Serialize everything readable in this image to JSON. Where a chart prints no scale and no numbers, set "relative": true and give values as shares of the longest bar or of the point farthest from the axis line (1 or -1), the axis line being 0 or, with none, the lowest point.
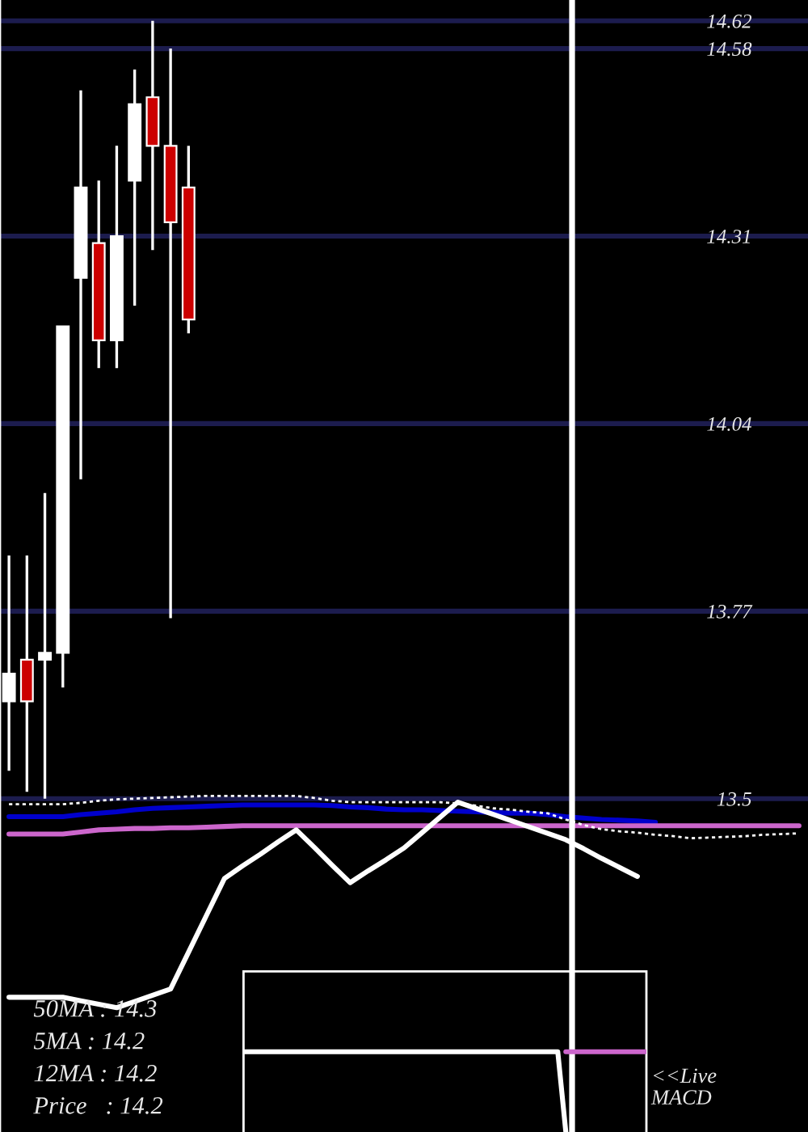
{
  "chart_data": [
    {
      "type": "candlestick",
      "categories": [
        null,
        null,
        null,
        null,
        null,
        null,
        null,
        null,
        null,
        null,
        null,
        null,
        null,
        null,
        null,
        null,
        null,
        null,
        null,
        null,
        null,
        null,
        null,
        null,
        null,
        null,
        null,
        null,
        null,
        null,
        null,
        null,
        null,
        null,
        null,
        null,
        null,
        null,
        null,
        null,
        null,
        null,
        null,
        null,
        null
      ],
      "ohlc": [
        [
          13.64,
          13.85,
          13.54,
          13.68
        ],
        [
          13.7,
          13.85,
          13.51,
          13.64
        ],
        [
          13.7,
          13.94,
          13.5,
          13.71
        ],
        [
          13.71,
          14.18,
          13.66,
          14.18
        ],
        [
          14.25,
          14.52,
          13.96,
          14.38
        ],
        [
          14.3,
          14.39,
          14.12,
          14.16
        ],
        [
          14.16,
          14.44,
          14.12,
          14.31
        ],
        [
          14.39,
          14.55,
          14.21,
          14.5
        ],
        [
          14.51,
          14.62,
          14.29,
          14.44
        ],
        [
          14.44,
          14.58,
          13.76,
          14.33
        ],
        [
          14.38,
          14.44,
          14.17,
          14.19
        ],
        null,
        null,
        null,
        null,
        null,
        null,
        null,
        null,
        null,
        null,
        null,
        null,
        null,
        null,
        null,
        null,
        null,
        null,
        null,
        null,
        null,
        null,
        null,
        null,
        null,
        null,
        null,
        null,
        null,
        null,
        null,
        null,
        null,
        null
      ],
      "colors": [
        "#ffffff",
        "#cc0000",
        "#ffffff",
        "#ffffff",
        "#ffffff",
        "#cc0000",
        "#ffffff",
        "#ffffff",
        "#cc0000",
        "#cc0000",
        "#cc0000",
        null,
        null,
        null,
        null,
        null,
        null,
        null,
        null,
        null,
        null,
        null,
        null,
        null,
        null,
        null,
        null,
        null,
        null,
        null,
        null,
        null,
        null,
        null,
        null,
        null,
        null,
        null,
        null,
        null,
        null,
        null,
        null,
        null,
        null
      ],
      "ylim": [
        13.02,
        14.65
      ],
      "yticks": [
        13.5,
        13.77,
        14.04,
        14.31,
        14.58,
        14.62
      ],
      "grid": "y",
      "tick_labels": "y",
      "series": [
        {
          "type": "line",
          "color": "#0000cc",
          "values": [
            13.474,
            13.474,
            13.474,
            13.474,
            13.477,
            13.479,
            13.481,
            13.484,
            13.486,
            13.487,
            13.488,
            13.489,
            13.49,
            13.491,
            13.491,
            13.491,
            13.491,
            13.491,
            13.49,
            13.488,
            13.487,
            13.485,
            13.484,
            13.484,
            13.483,
            13.482,
            13.481,
            13.48,
            13.479,
            13.479,
            13.477,
            13.474,
            13.472,
            13.47,
            13.469,
            13.468,
            13.466,
            null,
            null,
            null,
            null,
            null,
            null,
            null,
            null
          ]
        },
        {
          "type": "line",
          "color": "#cc66cc",
          "values": [
            13.449,
            13.449,
            13.449,
            13.449,
            13.452,
            13.455,
            13.456,
            13.457,
            13.457,
            13.458,
            13.458,
            13.459,
            13.46,
            13.461,
            13.461,
            13.461,
            13.461,
            13.461,
            13.461,
            13.461,
            13.461,
            13.461,
            13.461,
            13.461,
            13.461,
            13.461,
            13.461,
            13.461,
            13.461,
            13.461,
            13.461,
            13.461,
            13.461,
            13.461,
            13.461,
            13.461,
            13.461,
            13.461,
            13.461,
            13.461,
            13.461,
            13.461,
            13.461,
            13.461,
            13.461
          ]
        },
        {
          "type": "line",
          "color": "#ffffff",
          "line_style": "dotted",
          "values": [
            13.492,
            13.492,
            13.492,
            13.492,
            13.494,
            13.497,
            13.499,
            13.5,
            13.501,
            13.502,
            13.503,
            13.504,
            13.504,
            13.504,
            13.504,
            13.504,
            13.504,
            13.501,
            13.497,
            13.495,
            13.495,
            13.495,
            13.495,
            13.495,
            13.495,
            13.493,
            13.49,
            13.486,
            13.484,
            13.481,
            13.479,
            13.47,
            13.462,
            13.456,
            13.453,
            13.451,
            13.448,
            13.446,
            13.443,
            13.444,
            13.445,
            13.446,
            13.448,
            13.449,
            13.45
          ]
        },
        {
          "type": "line",
          "color": "#ffffff",
          "values": [
            13.214,
            13.214,
            13.214,
            13.214,
            13.209,
            13.204,
            13.199,
            13.208,
            13.217,
            13.226,
            13.279,
            13.332,
            13.385,
            13.403,
            13.42,
            13.438,
            13.455,
            13.43,
            13.404,
            13.379,
            13.396,
            13.412,
            13.429,
            13.451,
            13.473,
            13.495,
            13.486,
            13.477,
            13.468,
            13.459,
            13.45,
            13.441,
            13.428,
            13.414,
            13.401,
            13.388,
            null,
            null,
            null,
            null,
            null,
            null,
            null,
            null,
            null
          ]
        }
      ],
      "annotations": [
        "50MA : 14.3",
        "5MA : 14.2",
        "12MA : 14.2",
        "Price   : 14.2"
      ]
    },
    {
      "type": "line",
      "relative": true,
      "tick_labels": false,
      "categories": [
        null,
        null,
        null,
        null,
        null,
        null,
        null,
        null,
        null,
        null,
        null,
        null,
        null,
        null,
        null,
        null,
        null,
        null,
        null,
        null,
        null,
        null,
        null,
        null,
        null,
        null,
        null,
        null,
        null,
        null,
        null,
        null,
        null,
        null,
        null,
        null,
        null,
        null,
        null,
        null,
        null,
        null,
        null,
        null,
        null,
        null,
        null,
        null,
        null,
        null,
        null
      ],
      "series": [
        {
          "color": "#ffffff",
          "values": [
            1,
            1,
            1,
            1,
            1,
            1,
            1,
            1,
            1,
            1,
            1,
            1,
            1,
            1,
            1,
            1,
            1,
            1,
            1,
            1,
            1,
            1,
            1,
            1,
            1,
            1,
            1,
            1,
            1,
            1,
            1,
            1,
            1,
            1,
            1,
            1,
            1,
            1,
            1,
            1,
            0,
            null,
            null,
            null,
            null,
            null,
            null,
            null,
            null,
            null,
            null
          ]
        },
        {
          "color": "#cc66cc",
          "values": [
            null,
            null,
            null,
            null,
            null,
            null,
            null,
            null,
            null,
            null,
            null,
            null,
            null,
            null,
            null,
            null,
            null,
            null,
            null,
            null,
            null,
            null,
            null,
            null,
            null,
            null,
            null,
            null,
            null,
            null,
            null,
            null,
            null,
            null,
            null,
            null,
            null,
            null,
            null,
            null,
            1,
            1,
            1,
            1,
            1,
            1,
            1,
            1,
            1,
            1,
            1
          ]
        }
      ],
      "annotations": [
        "<<Live\nMACD"
      ]
    }
  ]
}
